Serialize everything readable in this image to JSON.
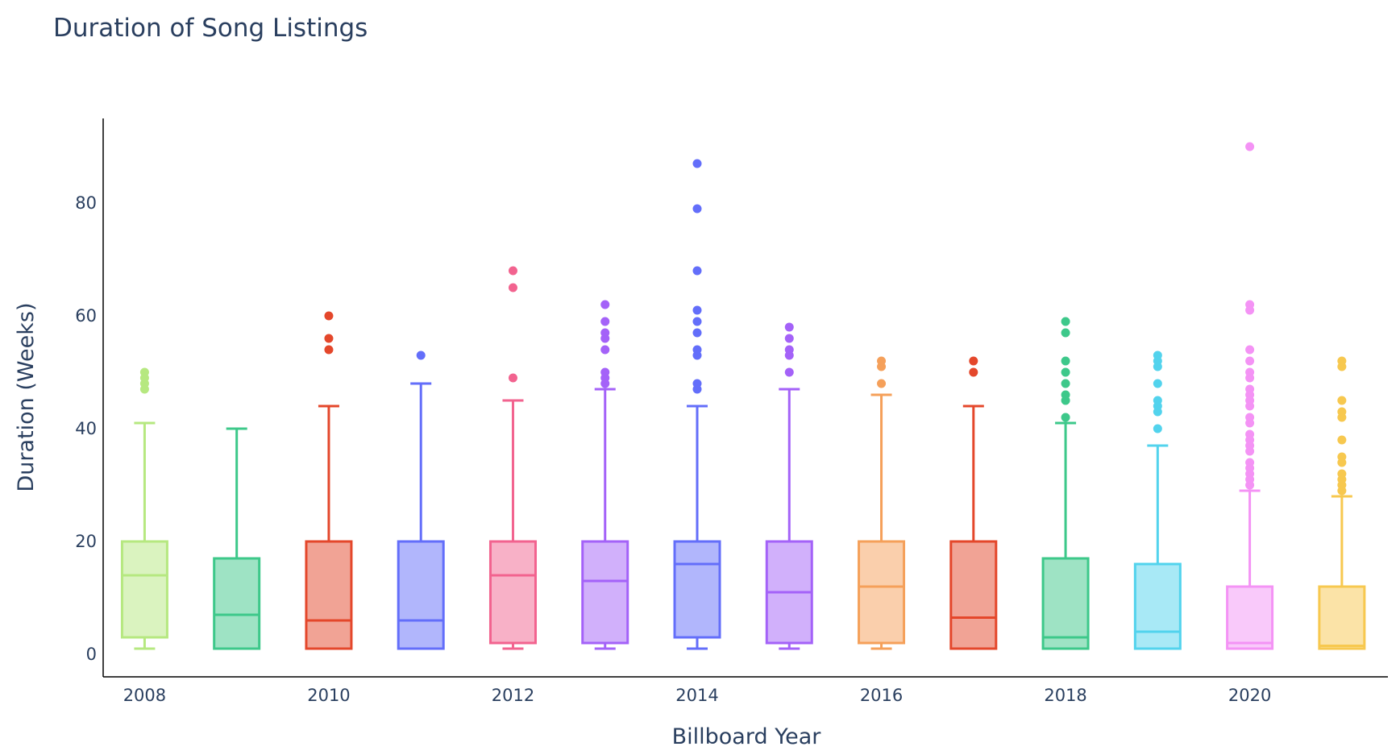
{
  "chart_data": {
    "type": "box",
    "title": "Duration of Song Listings",
    "xlabel": "Billboard Year",
    "ylabel": "Duration (Weeks)",
    "ylim": [
      -4,
      95
    ],
    "xlim": [
      2007.55,
      2021.5
    ],
    "x_ticks": [
      2008,
      2010,
      2012,
      2014,
      2016,
      2018,
      2020
    ],
    "y_ticks": [
      0,
      20,
      40,
      60,
      80
    ],
    "grid": false,
    "legend": "none",
    "series": [
      {
        "year": 2008,
        "color": "#b6e880",
        "min": 1,
        "q1": 3,
        "median": 14,
        "q3": 20,
        "max": 41,
        "outliers": [
          47,
          48,
          49,
          50
        ]
      },
      {
        "year": 2009,
        "color": "#3dc88a",
        "min": 1,
        "q1": 1,
        "median": 7,
        "q3": 17,
        "max": 40,
        "outliers": []
      },
      {
        "year": 2010,
        "color": "#e4472b",
        "min": 1,
        "q1": 1,
        "median": 6,
        "q3": 20,
        "max": 44,
        "outliers": [
          54,
          56,
          60
        ]
      },
      {
        "year": 2011,
        "color": "#636efa",
        "min": 1,
        "q1": 1,
        "median": 6,
        "q3": 20,
        "max": 48,
        "outliers": [
          53
        ]
      },
      {
        "year": 2012,
        "color": "#f2638f",
        "min": 1,
        "q1": 2,
        "median": 14,
        "q3": 20,
        "max": 45,
        "outliers": [
          49,
          65,
          68
        ]
      },
      {
        "year": 2013,
        "color": "#a462f8",
        "min": 1,
        "q1": 2,
        "median": 13,
        "q3": 20,
        "max": 47,
        "outliers": [
          48,
          49,
          50,
          54,
          56,
          57,
          59,
          62
        ]
      },
      {
        "year": 2014,
        "color": "#636efa",
        "min": 1,
        "q1": 3,
        "median": 16,
        "q3": 20,
        "max": 44,
        "outliers": [
          47,
          48,
          53,
          54,
          57,
          59,
          61,
          68,
          79,
          87
        ]
      },
      {
        "year": 2015,
        "color": "#a462f8",
        "min": 1,
        "q1": 2,
        "median": 11,
        "q3": 20,
        "max": 47,
        "outliers": [
          50,
          53,
          54,
          56,
          58
        ]
      },
      {
        "year": 2016,
        "color": "#f5a05a",
        "min": 1,
        "q1": 2,
        "median": 12,
        "q3": 20,
        "max": 46,
        "outliers": [
          48,
          51,
          52
        ]
      },
      {
        "year": 2017,
        "color": "#e4472b",
        "min": 1,
        "q1": 1,
        "median": 6.5,
        "q3": 20,
        "max": 44,
        "outliers": [
          50,
          52
        ]
      },
      {
        "year": 2018,
        "color": "#3dc88a",
        "min": 1,
        "q1": 1,
        "median": 3,
        "q3": 17,
        "max": 41,
        "outliers": [
          42,
          45,
          46,
          48,
          50,
          52,
          57,
          59
        ]
      },
      {
        "year": 2019,
        "color": "#52d3ed",
        "min": 1,
        "q1": 1,
        "median": 4,
        "q3": 16,
        "max": 37,
        "outliers": [
          40,
          43,
          44,
          45,
          48,
          51,
          52,
          53
        ]
      },
      {
        "year": 2020,
        "color": "#f493f5",
        "min": 1,
        "q1": 1,
        "median": 2,
        "q3": 12,
        "max": 29,
        "outliers": [
          30,
          31,
          32,
          33,
          34,
          36,
          37,
          38,
          39,
          41,
          42,
          44,
          45,
          46,
          47,
          49,
          50,
          52,
          54,
          61,
          62,
          90
        ]
      },
      {
        "year": 2021,
        "color": "#f7c84f",
        "min": 1,
        "q1": 1,
        "median": 1.5,
        "q3": 12,
        "max": 28,
        "outliers": [
          29,
          30,
          31,
          32,
          34,
          35,
          38,
          42,
          43,
          45,
          51,
          52
        ]
      }
    ]
  }
}
